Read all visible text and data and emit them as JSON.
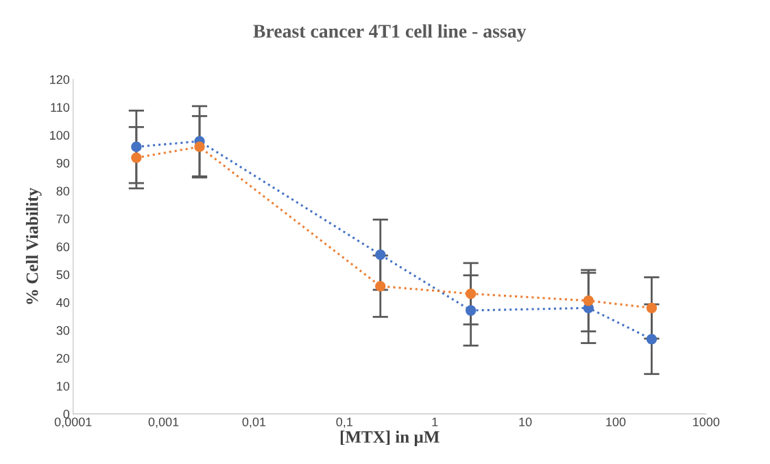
{
  "chart_data": {
    "type": "line",
    "title": "Breast cancer 4T1 cell line - assay",
    "xlabel": "[MTX] in µM",
    "ylabel": "% Cell Viability",
    "log": "x",
    "marker": "circle",
    "line_style": "dotted",
    "xlim": [
      0.0001,
      1000
    ],
    "xticks": [
      {
        "value": 0.0001,
        "label": "0,0001"
      },
      {
        "value": 0.001,
        "label": "0,001"
      },
      {
        "value": 0.01,
        "label": "0,01"
      },
      {
        "value": 0.1,
        "label": "0,1"
      },
      1,
      10,
      100,
      1000
    ],
    "ylim": [
      0,
      120
    ],
    "yticks": [
      0,
      10,
      20,
      30,
      40,
      50,
      60,
      70,
      80,
      90,
      100,
      110,
      120
    ],
    "x": [
      0.0005,
      0.0025,
      0.25,
      2.5,
      50,
      250
    ],
    "series": [
      {
        "color": "#4472c4",
        "values": [
          95.8,
          97.8,
          57.1,
          37.1,
          38.0,
          26.8
        ],
        "errors": [
          13,
          12.6,
          12.6,
          12.6,
          12.6,
          12.5
        ]
      },
      {
        "color": "#ed7d31",
        "values": [
          91.9,
          95.8,
          45.8,
          43.1,
          40.6,
          38.0
        ],
        "errors": [
          11,
          11,
          11,
          11,
          11,
          11
        ]
      }
    ]
  }
}
